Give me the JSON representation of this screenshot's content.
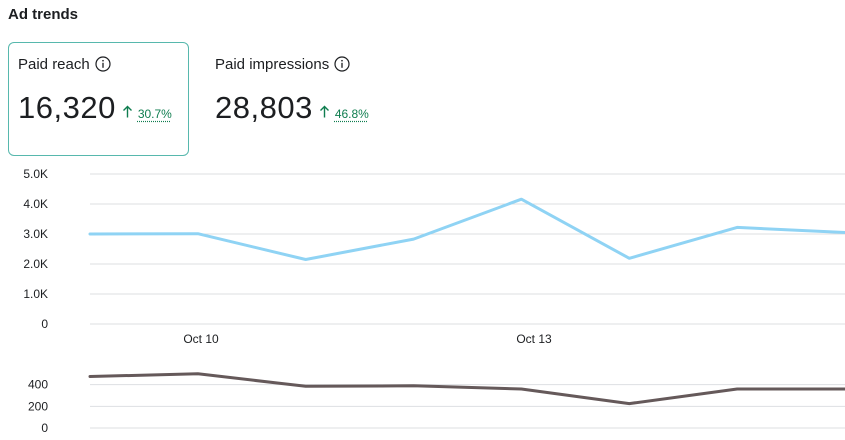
{
  "section": {
    "title": "Ad trends"
  },
  "metrics": [
    {
      "label": "Paid reach",
      "value": "16,320",
      "change": "30.7%",
      "selected": true
    },
    {
      "label": "Paid impressions",
      "value": "28,803",
      "change": "46.8%",
      "selected": false
    }
  ],
  "colors": {
    "selected_border": "#57b8ad",
    "main_line": "#8fd3f4",
    "secondary_line": "#65595a",
    "positive": "#0f7d4f",
    "gridline": "#dddfe2"
  },
  "chart_data": [
    {
      "type": "line",
      "x_tick_labels": [
        "Oct 10",
        "Oct 13"
      ],
      "y_tick_labels": [
        "0",
        "1.0K",
        "2.0K",
        "3.0K",
        "4.0K",
        "5.0K"
      ],
      "ylim": [
        0,
        5000
      ],
      "grid": true,
      "series": [
        {
          "values": [
            3000,
            3010,
            2150,
            2830,
            4160,
            2190,
            3220,
            3050
          ]
        }
      ]
    },
    {
      "type": "line",
      "y_tick_labels": [
        "0",
        "200",
        "400"
      ],
      "ylim": [
        0,
        600
      ],
      "grid": true,
      "series": [
        {
          "values": [
            475,
            500,
            385,
            390,
            360,
            225,
            360,
            360
          ]
        }
      ]
    }
  ]
}
